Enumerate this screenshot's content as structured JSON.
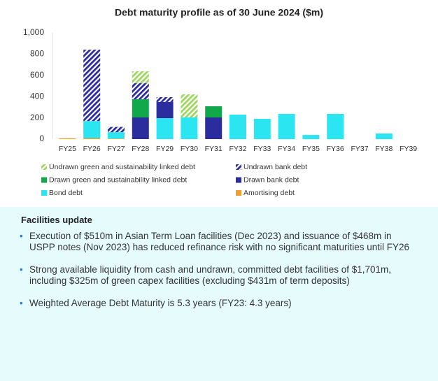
{
  "chart_data": {
    "type": "bar",
    "stacked": true,
    "title": "Debt maturity profile as of 30 June 2024 ($m)",
    "categories": [
      "FY25",
      "FY26",
      "FY27",
      "FY28",
      "FY29",
      "FY30",
      "FY31",
      "FY32",
      "FY33",
      "FY34",
      "FY35",
      "FY36",
      "FY37",
      "FY38",
      "FY39"
    ],
    "series": [
      {
        "name": "Amortising debt",
        "color": "#f0a030",
        "hatched": false,
        "values": [
          8,
          10,
          5,
          0,
          0,
          0,
          0,
          0,
          0,
          0,
          0,
          0,
          0,
          0,
          0
        ]
      },
      {
        "name": "Bond debt",
        "color": "#2be6f0",
        "hatched": false,
        "values": [
          0,
          160,
          60,
          0,
          197,
          204,
          0,
          230,
          191,
          237,
          39,
          237,
          0,
          53,
          0
        ]
      },
      {
        "name": "Drawn bank debt",
        "color": "#2b2c9e",
        "hatched": false,
        "values": [
          0,
          0,
          0,
          204,
          152,
          0,
          204,
          0,
          0,
          0,
          0,
          0,
          0,
          0,
          0
        ]
      },
      {
        "name": "Drawn green and sustainability linked debt",
        "color": "#10a84a",
        "hatched": false,
        "values": [
          0,
          0,
          0,
          171,
          0,
          0,
          105,
          0,
          0,
          0,
          0,
          0,
          0,
          0,
          0
        ]
      },
      {
        "name": "Undrawn bank debt",
        "color": "#2b2c9e",
        "hatched": true,
        "values": [
          0,
          672,
          50,
          151,
          46,
          0,
          0,
          0,
          0,
          0,
          0,
          0,
          0,
          0,
          0
        ]
      },
      {
        "name": "Undrawn green and sustainability linked debt",
        "color": "#9ed660",
        "hatched": true,
        "values": [
          0,
          0,
          0,
          112,
          0,
          217,
          0,
          0,
          0,
          0,
          0,
          0,
          0,
          0,
          0
        ]
      }
    ],
    "legend_order": [
      5,
      4,
      3,
      2,
      1,
      0
    ],
    "ylim": [
      0,
      1000
    ],
    "yticks": [
      0,
      200,
      400,
      600,
      800,
      {
        "value": 1000,
        "label": "1,000"
      }
    ],
    "grid": false
  },
  "facilities": {
    "title": "Facilities update",
    "bullets": [
      "Execution of $510m in Asian Term Loan facilities (Dec 2023) and issuance of $468m in USPP notes (Nov 2023) has reduced refinance risk with no significant maturities until FY26",
      "Strong available liquidity from cash and undrawn, committed debt facilities of $1,701m, including $325m of green capex facilities (excluding $431m of term deposits)",
      "Weighted Average Debt Maturity is 5.3 years (FY23: 4.3 years)"
    ]
  }
}
